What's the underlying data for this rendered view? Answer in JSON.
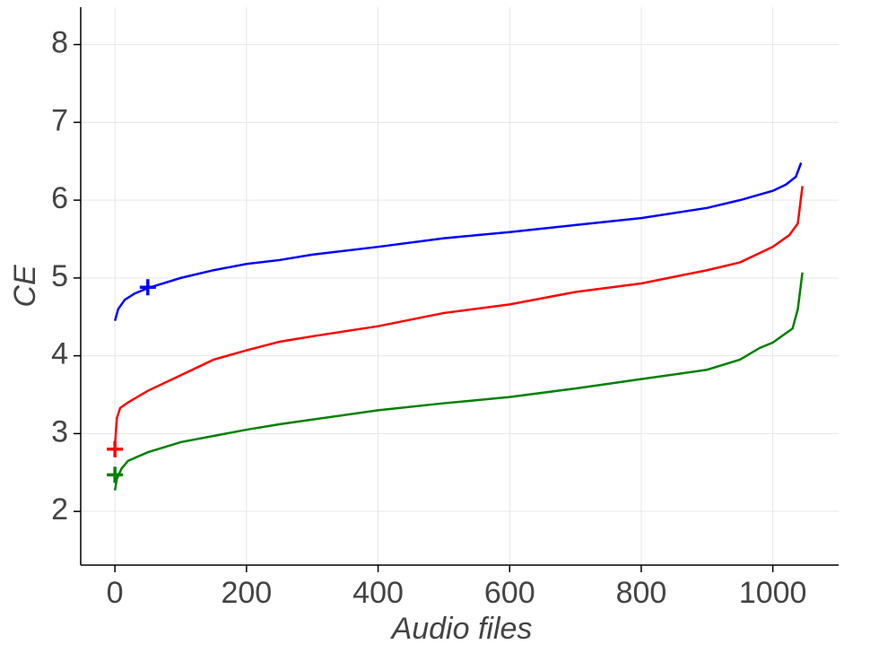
{
  "chart_data": {
    "type": "line",
    "xlabel": "Audio files",
    "ylabel": "CE",
    "xlim": [
      -52,
      1100
    ],
    "ylim": [
      1.31,
      8.48
    ],
    "xticks": [
      0,
      200,
      400,
      600,
      800,
      1000
    ],
    "yticks": [
      2,
      3,
      4,
      5,
      6,
      7,
      8
    ],
    "grid": true,
    "series": [
      {
        "color": "#0000ff",
        "x": [
          0,
          5,
          15,
          30,
          50,
          100,
          150,
          200,
          250,
          300,
          400,
          500,
          600,
          700,
          800,
          900,
          950,
          1000,
          1020,
          1035,
          1043
        ],
        "values": [
          4.45,
          4.6,
          4.72,
          4.8,
          4.87,
          5.0,
          5.1,
          5.18,
          5.23,
          5.3,
          5.4,
          5.51,
          5.59,
          5.68,
          5.77,
          5.9,
          6.0,
          6.12,
          6.2,
          6.3,
          6.48
        ],
        "marker": {
          "x": 50,
          "y": 4.88
        }
      },
      {
        "color": "#ff0000",
        "x": [
          0,
          3,
          8,
          20,
          50,
          100,
          150,
          200,
          250,
          300,
          400,
          500,
          600,
          700,
          800,
          900,
          950,
          1000,
          1025,
          1038,
          1045
        ],
        "values": [
          2.85,
          3.2,
          3.33,
          3.4,
          3.55,
          3.75,
          3.95,
          4.07,
          4.18,
          4.25,
          4.38,
          4.55,
          4.66,
          4.82,
          4.93,
          5.1,
          5.2,
          5.4,
          5.55,
          5.7,
          6.18
        ],
        "marker": {
          "x": 0,
          "y": 2.8
        }
      },
      {
        "color": "#008000",
        "x": [
          0,
          3,
          10,
          20,
          50,
          100,
          150,
          200,
          250,
          300,
          400,
          500,
          600,
          700,
          800,
          900,
          950,
          980,
          1000,
          1030,
          1038,
          1045
        ],
        "values": [
          2.27,
          2.42,
          2.55,
          2.65,
          2.76,
          2.89,
          2.97,
          3.05,
          3.12,
          3.18,
          3.3,
          3.39,
          3.47,
          3.58,
          3.7,
          3.82,
          3.95,
          4.1,
          4.17,
          4.35,
          4.6,
          5.07
        ],
        "marker": {
          "x": 0,
          "y": 2.47
        }
      }
    ]
  }
}
